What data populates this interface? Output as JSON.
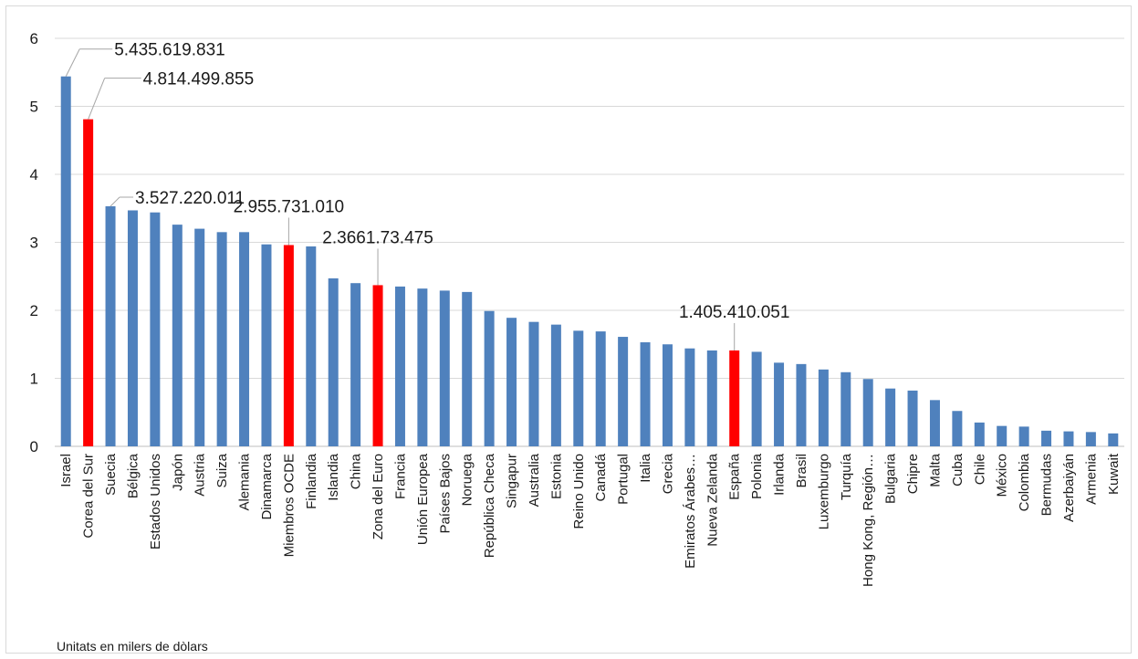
{
  "chart_data": {
    "type": "bar",
    "categories": [
      "Israel",
      "Corea del Sur",
      "Suecia",
      "Bélgica",
      "Estados Unidos",
      "Japón",
      "Austria",
      "Suiza",
      "Alemania",
      "Dinamarca",
      "Miembros OCDE",
      "Finlandia",
      "Islandia",
      "China",
      "Zona del Euro",
      "Francia",
      "Unión Europea",
      "Países Bajos",
      "Noruega",
      "República Checa",
      "Singapur",
      "Australia",
      "Estonia",
      "Reino Unido",
      "Canadá",
      "Portugal",
      "Italia",
      "Grecia",
      "Emiratos Árabes…",
      "Nueva Zelanda",
      "España",
      "Polonia",
      "Irlanda",
      "Brasil",
      "Luxemburgo",
      "Turquía",
      "Hong Kong, Región…",
      "Bulgaria",
      "Chipre",
      "Malta",
      "Cuba",
      "Chile",
      "México",
      "Colombia",
      "Bermudas",
      "Azerbaiyán",
      "Armenia",
      "Kuwait"
    ],
    "values": [
      5.44,
      4.81,
      3.53,
      3.47,
      3.44,
      3.26,
      3.2,
      3.15,
      3.15,
      2.97,
      2.96,
      2.94,
      2.47,
      2.4,
      2.37,
      2.35,
      2.32,
      2.29,
      2.27,
      1.99,
      1.89,
      1.83,
      1.79,
      1.7,
      1.69,
      1.61,
      1.53,
      1.5,
      1.44,
      1.41,
      1.41,
      1.39,
      1.23,
      1.21,
      1.13,
      1.09,
      0.99,
      0.85,
      0.82,
      0.68,
      0.52,
      0.35,
      0.3,
      0.29,
      0.23,
      0.22,
      0.21,
      0.19
    ],
    "highlighted": [
      "Corea del Sur",
      "Miembros OCDE",
      "Zona del Euro",
      "España"
    ],
    "ylim": [
      0,
      6
    ],
    "yticks": [
      "0",
      "1",
      "2",
      "3",
      "4",
      "5",
      "6"
    ],
    "grid": true,
    "colors": {
      "default": "#4f81bd",
      "highlight": "#ff0000",
      "grid": "#d9d9d9",
      "axis": "#bfbfbf",
      "callout": "#a6a6a6"
    },
    "annotations": [
      {
        "category": "Israel",
        "text": "5.435.619.831"
      },
      {
        "category": "Corea del Sur",
        "text": "4.814.499.855"
      },
      {
        "category": "Suecia",
        "text": "3.527.220.011"
      },
      {
        "category": "Miembros OCDE",
        "text": "2.955.731.010"
      },
      {
        "category": "Zona del Euro",
        "text": "2.3661.73.475"
      },
      {
        "category": "España",
        "text": "1.405.410.051"
      }
    ],
    "note": "Unitats en milers de dòlars"
  }
}
